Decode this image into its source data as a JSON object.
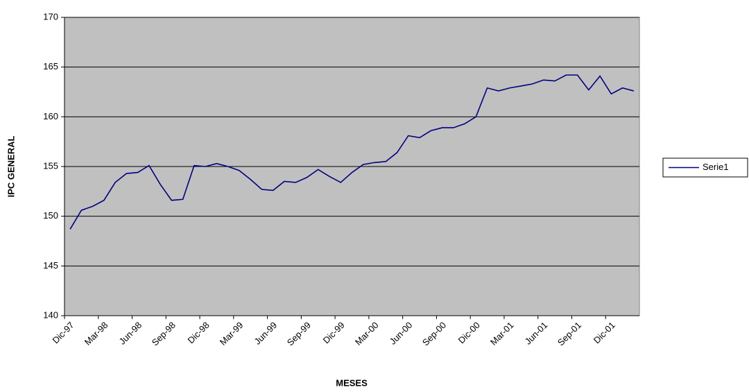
{
  "chart_data": {
    "type": "line",
    "x_label": "MESES",
    "y_label": "IPC GENERAL",
    "categories": [
      "Dic-97",
      null,
      null,
      "Mar-98",
      null,
      null,
      "Jun-98",
      null,
      null,
      "Sep-98",
      null,
      null,
      "Dic-98",
      null,
      null,
      "Mar-99",
      null,
      null,
      "Jun-99",
      null,
      null,
      "Sep-99",
      null,
      null,
      "Dic-99",
      null,
      null,
      "Mar-00",
      null,
      null,
      "Jun-00",
      null,
      null,
      "Sep-00",
      null,
      null,
      "Dic-00",
      null,
      null,
      "Mar-01",
      null,
      null,
      "Jun-01",
      null,
      null,
      "Sep-01",
      null,
      null,
      "Dic-01",
      null,
      null
    ],
    "series": [
      {
        "name": "Serie1",
        "color": "#000080",
        "values": [
          148.7,
          150.6,
          151.0,
          151.6,
          153.4,
          154.3,
          154.4,
          155.1,
          153.2,
          151.6,
          151.7,
          155.1,
          155.0,
          155.3,
          155.0,
          154.6,
          153.7,
          152.7,
          152.6,
          153.5,
          153.4,
          153.9,
          154.7,
          154.0,
          153.4,
          154.4,
          155.2,
          155.4,
          155.5,
          156.4,
          158.1,
          157.9,
          158.6,
          158.9,
          158.9,
          159.3,
          160.0,
          162.9,
          162.6,
          162.9,
          163.1,
          163.3,
          163.7,
          163.6,
          164.2,
          164.2,
          162.7,
          164.1,
          162.3,
          162.9,
          162.6
        ]
      }
    ],
    "ylim": [
      140,
      170
    ],
    "yticks": [
      140,
      145,
      150,
      155,
      160,
      165,
      170
    ],
    "grid": true,
    "legend": "right",
    "plot_background": "#c0c0c0"
  }
}
